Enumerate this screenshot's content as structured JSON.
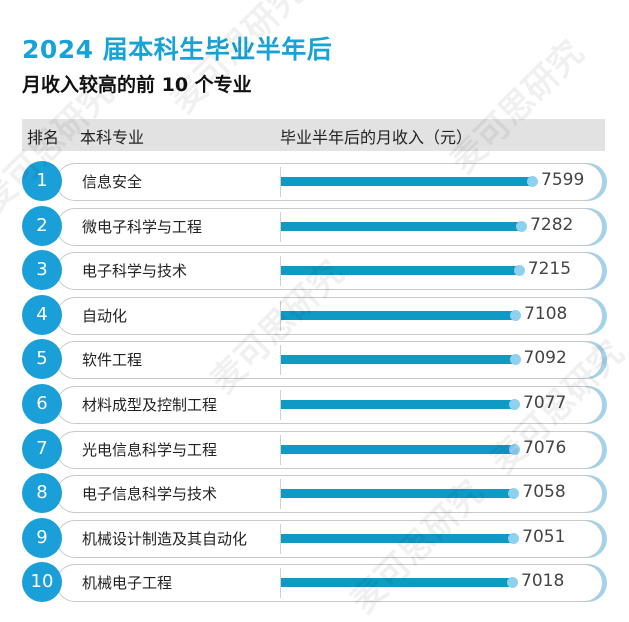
{
  "chart_data": {
    "type": "bar",
    "orientation": "horizontal",
    "title": "2024 届本科生毕业半年后",
    "subtitle": "月收入较高的前 10 个专业",
    "columns": [
      "排名",
      "本科专业",
      "毕业半年后的月收入（元）"
    ],
    "ranks": [
      "1",
      "2",
      "3",
      "4",
      "5",
      "6",
      "7",
      "8",
      "9",
      "10"
    ],
    "categories": [
      "信息安全",
      "微电子科学与工程",
      "电子科学与技术",
      "自动化",
      "软件工程",
      "材料成型及控制工程",
      "光电信息科学与工程",
      "电子信息科学与技术",
      "机械设计制造及其自动化",
      "机械电子工程"
    ],
    "values": [
      7599,
      7282,
      7215,
      7108,
      7092,
      7077,
      7076,
      7058,
      7051,
      7018
    ],
    "value_labels": [
      "7599",
      "7282",
      "7215",
      "7108",
      "7092",
      "7077",
      "7076",
      "7058",
      "7051",
      "7018"
    ],
    "colors": {
      "title": "#17a3d6",
      "bar": "#0f9ac6",
      "rank_circle": "#1a9fd8",
      "header_bg": "#e2e2e2"
    },
    "watermark": "麦可思研究"
  }
}
